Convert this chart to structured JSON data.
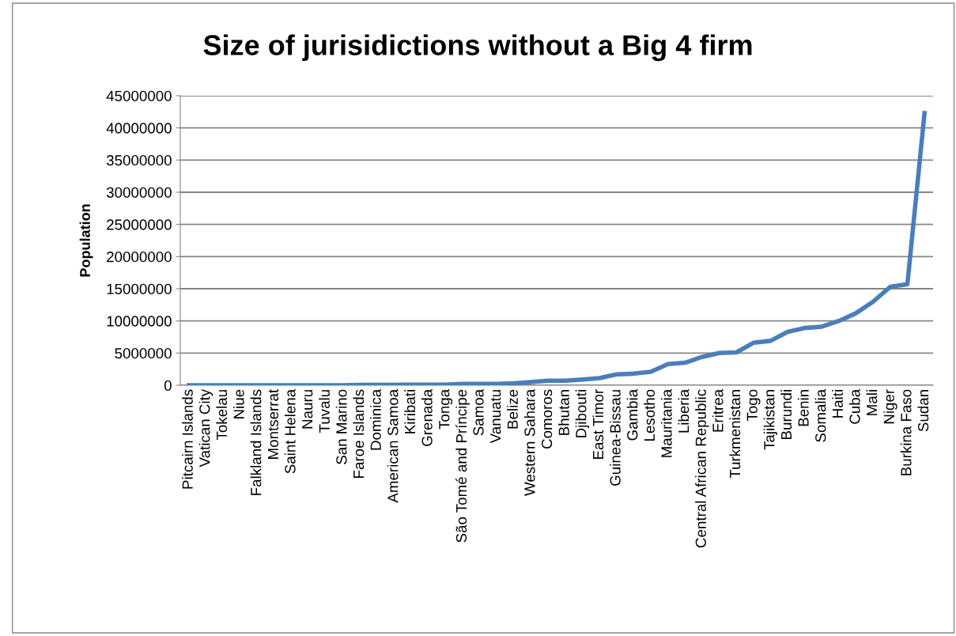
{
  "chart_data": {
    "type": "line",
    "title": "Size of jurisidictions without a Big 4 firm",
    "ylabel": "Population",
    "categories": [
      "Pitcairn Islands",
      "Vatican City",
      "Tokelau",
      "Niue",
      "Falkland Islands",
      "Montserrat",
      "Saint Helena",
      "Nauru",
      "Tuvalu",
      "San Marino",
      "Faroe Islands",
      "Dominica",
      "American Samoa",
      "Kiribati",
      "Grenada",
      "Tonga",
      "São Tomé and Príncipe",
      "Samoa",
      "Vanuatu",
      "Belize",
      "Western Sahara",
      "Comoros",
      "Bhutan",
      "Djibouti",
      "East Timor",
      "Guinea-Bissau",
      "Gambia",
      "Lesotho",
      "Mauritania",
      "Liberia",
      "Central African Republic",
      "Eritrea",
      "Turkmenistan",
      "Togo",
      "Tajikistan",
      "Burundi",
      "Benin",
      "Somalia",
      "Haiti",
      "Cuba",
      "Mali",
      "Niger",
      "Burkina Faso",
      "Sudan"
    ],
    "series": [
      {
        "color": "#4a7ebb",
        "values": [
          0,
          0,
          0,
          0,
          0,
          0,
          0,
          0,
          0,
          0,
          50000,
          70000,
          70000,
          100000,
          100000,
          100000,
          200000,
          200000,
          200000,
          300000,
          500000,
          700000,
          700000,
          900000,
          1100000,
          1700000,
          1800000,
          2100000,
          3300000,
          3500000,
          4400000,
          5000000,
          5100000,
          6600000,
          6900000,
          8300000,
          8900000,
          9100000,
          10000000,
          11200000,
          13000000,
          15300000,
          15700000,
          42300000
        ]
      }
    ],
    "ylim": [
      0,
      45000000
    ],
    "yticks": [
      0,
      5000000,
      10000000,
      15000000,
      20000000,
      25000000,
      30000000,
      35000000,
      40000000,
      45000000
    ],
    "grid": "y",
    "legend": false,
    "marker": "none",
    "line_style": "solid"
  }
}
